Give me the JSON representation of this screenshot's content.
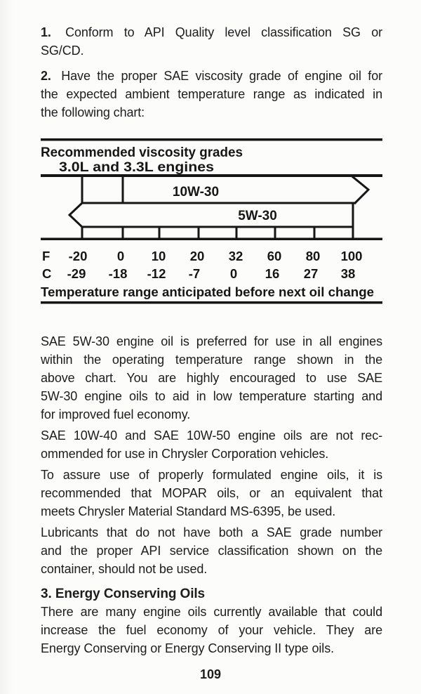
{
  "page": {
    "number": "109"
  },
  "intro_paragraphs": [
    {
      "num": "1.",
      "lines": [
        "Conform to API Quality level classification SG or",
        "SG/CD."
      ]
    },
    {
      "num": "2.",
      "lines": [
        "Have the proper SAE viscosity grade of engine oil for",
        "the expected ambient temperature range as indicated in",
        "the following chart:"
      ]
    }
  ],
  "chart_data": {
    "type": "bar",
    "title": "Recommended viscosity grades",
    "subtitle": "3.0L and 3.3L engines",
    "bars": [
      {
        "label": "10W-30",
        "from_f": -20,
        "divider_f": 0,
        "to_f": 100,
        "arrow": "right"
      },
      {
        "label": "5W-30",
        "from_f": -20,
        "to_f": 100,
        "arrow": "left"
      }
    ],
    "axis": {
      "f_label": "F",
      "c_label": "C",
      "f_ticks": [
        "-20",
        "0",
        "10",
        "20",
        "32",
        "60",
        "80",
        "100"
      ],
      "c_ticks": [
        "-29",
        "-18",
        "-12",
        "-7",
        "0",
        "16",
        "27",
        "38"
      ]
    },
    "caption": "Temperature range anticipated before next oil change",
    "legend_position": "none",
    "grid": false
  },
  "body_sections": [
    {
      "lines": [
        "SAE 5W-30 engine oil is preferred for use in all engines",
        "within the operating temperature range shown in the",
        "above chart. You are highly encouraged to use SAE",
        "5W-30 engine oils to aid in low temperature starting and",
        "for improved fuel economy."
      ]
    },
    {
      "lines": [
        "SAE 10W-40 and SAE 10W-50 engine oils are not rec-",
        "ommended for use in Chrysler Corporation vehicles."
      ]
    },
    {
      "lines": [
        "To assure use of properly formulated engine oils, it is",
        "recommended that MOPAR oils, or an equivalent that",
        "meets Chrysler Material Standard MS-6395, be used."
      ]
    },
    {
      "lines": [
        "Lubricants that do not have both a SAE grade number",
        "and the proper API service classification shown on the",
        "container, should not be used."
      ]
    },
    {
      "heading": "3.  Energy Conserving Oils"
    },
    {
      "lines": [
        "There are many engine oils currently available that could",
        "increase the fuel economy of your vehicle. They are",
        "Energy Conserving or Energy Conserving II type oils."
      ]
    }
  ]
}
